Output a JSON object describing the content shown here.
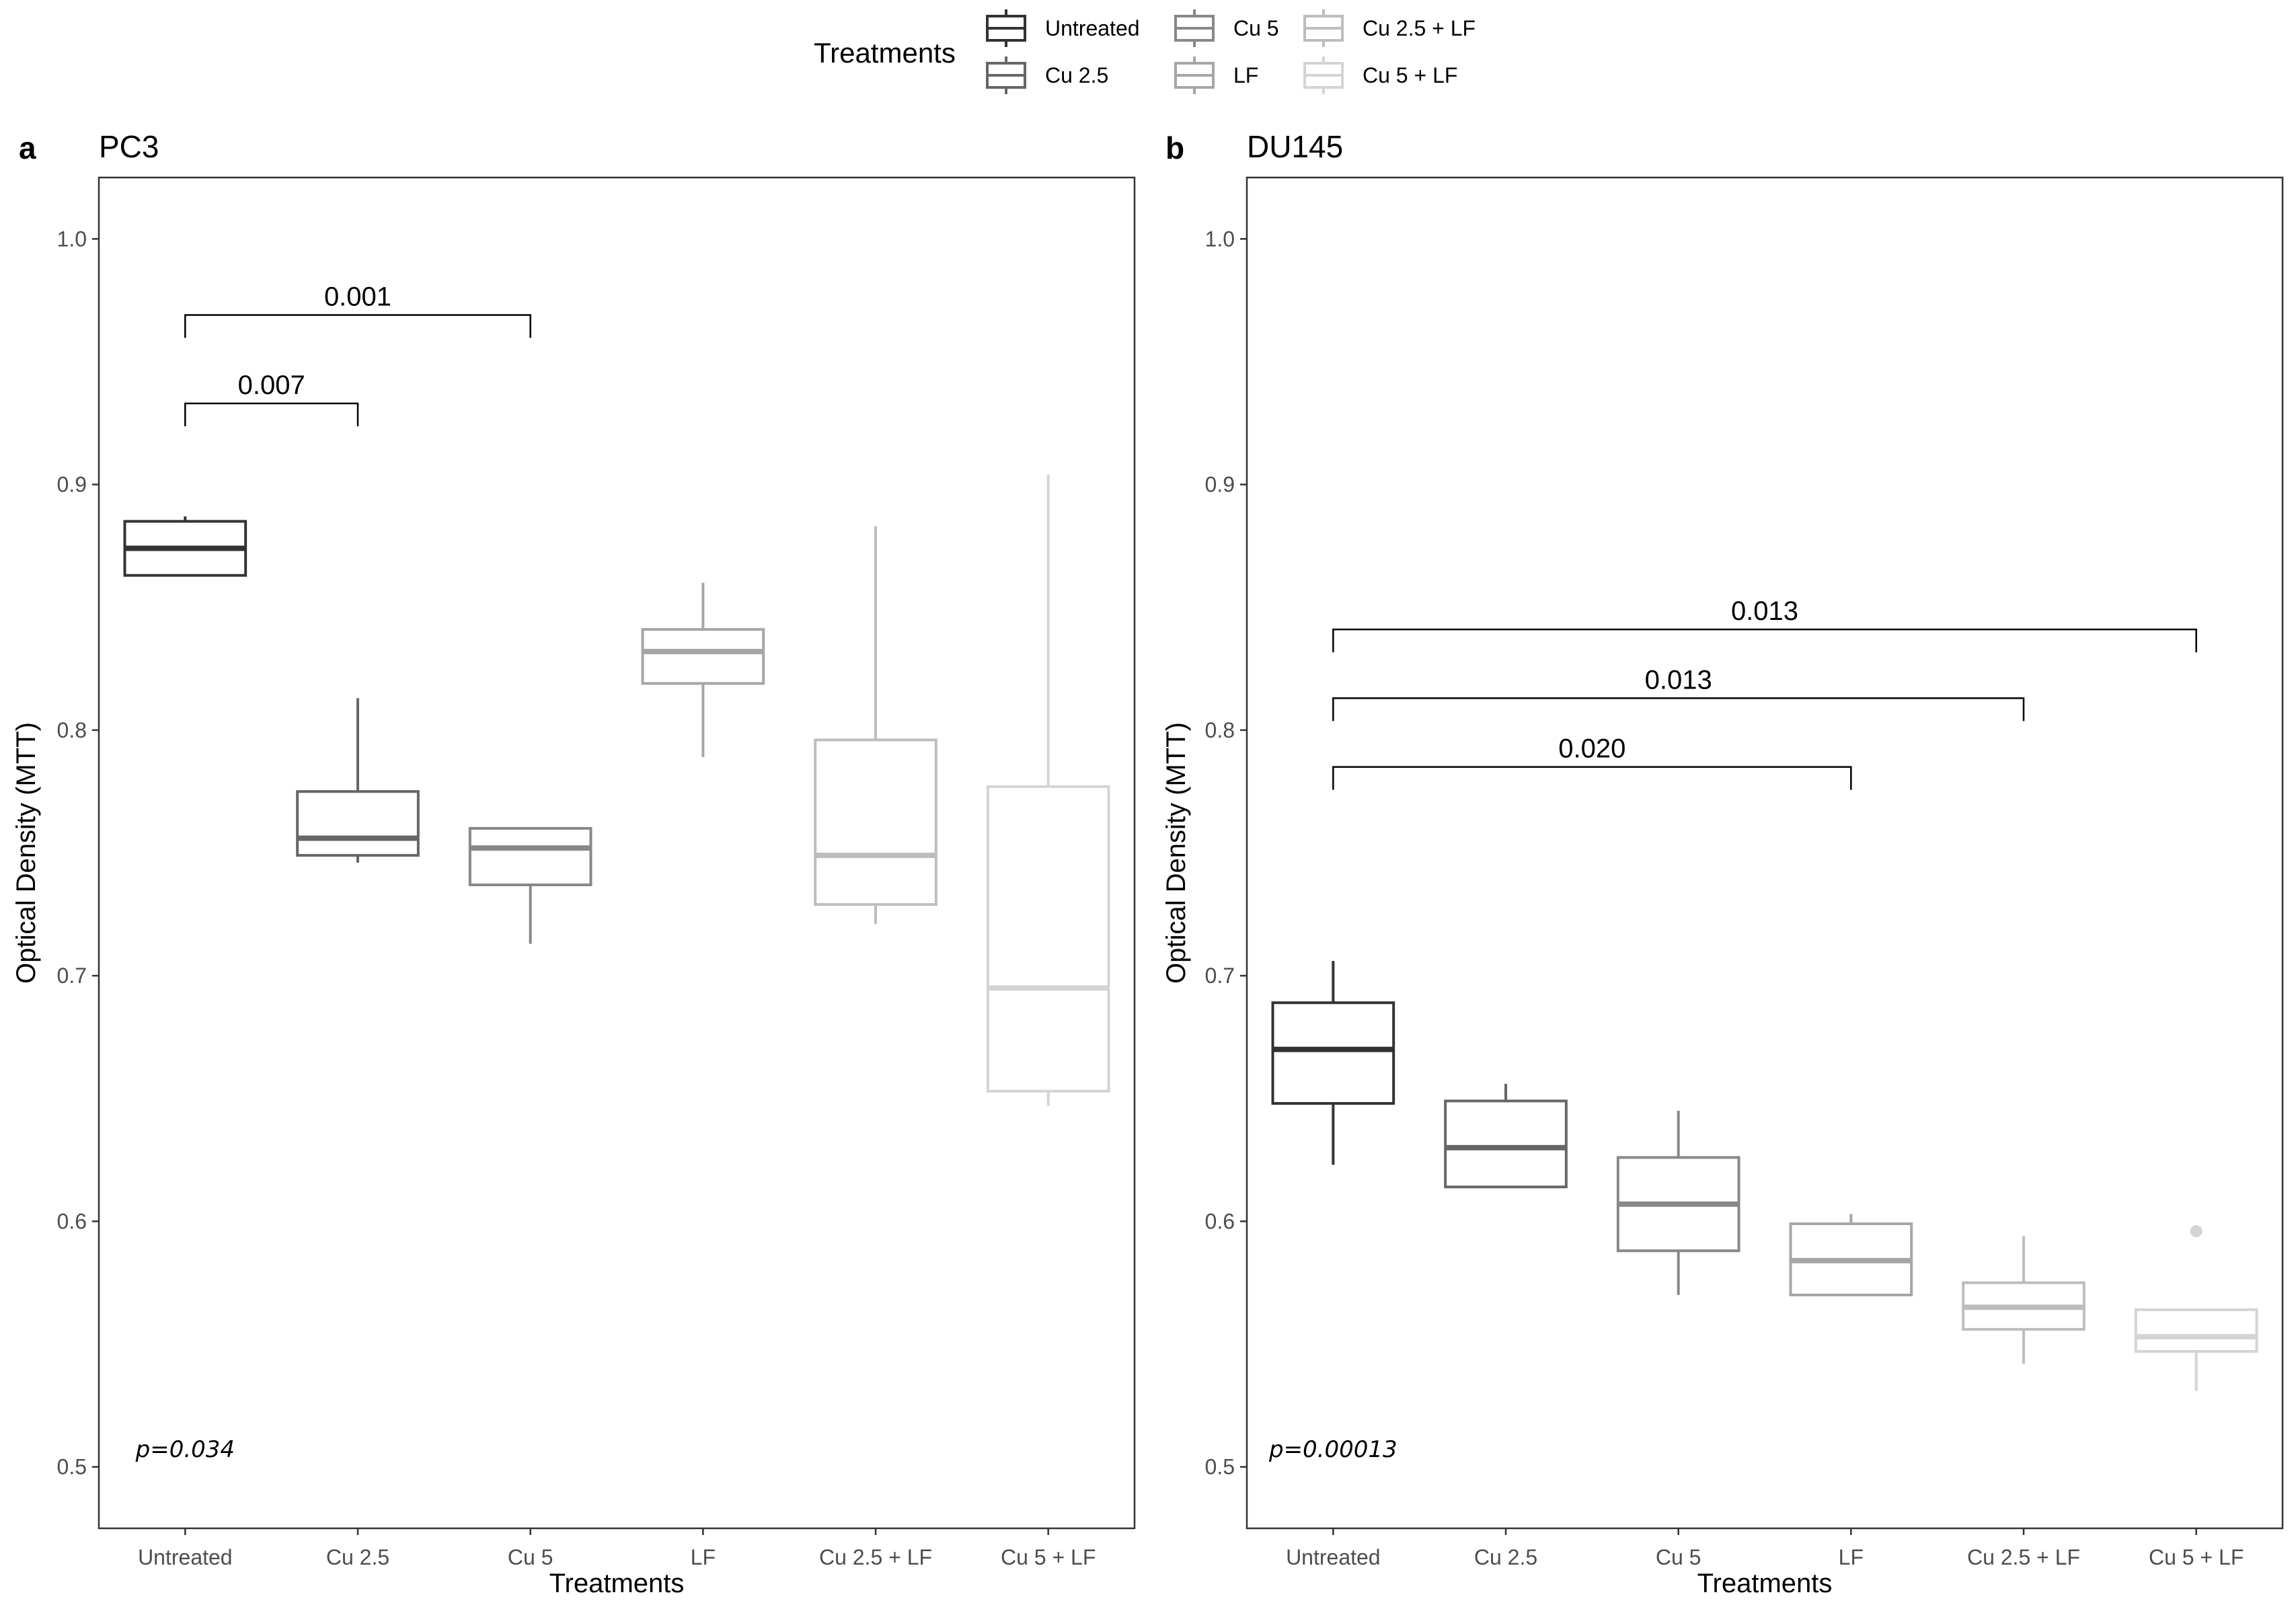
{
  "legend": {
    "title": "Treatments",
    "entries": [
      {
        "label": "Untreated",
        "color": "#333333"
      },
      {
        "label": "Cu 2.5",
        "color": "#666666"
      },
      {
        "label": "Cu 5",
        "color": "#888888"
      },
      {
        "label": "LF",
        "color": "#a6a6a6"
      },
      {
        "label": "Cu 2.5 + LF",
        "color": "#bdbdbd"
      },
      {
        "label": "Cu 5 + LF",
        "color": "#d4d4d4"
      }
    ]
  },
  "chart_data": [
    {
      "type": "boxplot",
      "panel_letter": "a",
      "title": "PC3",
      "xlabel": "Treatments",
      "ylabel": "Optical Density (MTT)",
      "ylim": [
        0.475,
        1.025
      ],
      "yticks": [
        "0.5",
        "0.6",
        "0.7",
        "0.8",
        "0.9",
        "1.0"
      ],
      "grid": false,
      "categories": [
        "Untreated",
        "Cu 2.5",
        "Cu 5",
        "LF",
        "Cu 2.5 + LF",
        "Cu 5 + LF"
      ],
      "boxes": [
        {
          "min": 0.863,
          "q1": 0.863,
          "median": 0.874,
          "q3": 0.885,
          "max": 0.887,
          "outliers": []
        },
        {
          "min": 0.746,
          "q1": 0.749,
          "median": 0.756,
          "q3": 0.775,
          "max": 0.813,
          "outliers": []
        },
        {
          "min": 0.713,
          "q1": 0.737,
          "median": 0.752,
          "q3": 0.76,
          "max": 0.76,
          "outliers": []
        },
        {
          "min": 0.789,
          "q1": 0.819,
          "median": 0.832,
          "q3": 0.841,
          "max": 0.86,
          "outliers": []
        },
        {
          "min": 0.721,
          "q1": 0.729,
          "median": 0.749,
          "q3": 0.796,
          "max": 0.883,
          "outliers": []
        },
        {
          "min": 0.647,
          "q1": 0.653,
          "median": 0.695,
          "q3": 0.777,
          "max": 0.904,
          "outliers": []
        }
      ],
      "brackets": [
        {
          "from": 0,
          "to": 1,
          "y": 0.933,
          "label": "0.007"
        },
        {
          "from": 0,
          "to": 2,
          "y": 0.969,
          "label": "0.001"
        }
      ],
      "pvalue_text": "p=0.034",
      "pvalue_pos": {
        "x_index": 0,
        "y": 0.504
      }
    },
    {
      "type": "boxplot",
      "panel_letter": "b",
      "title": "DU145",
      "xlabel": "Treatments",
      "ylabel": "Optical Density (MTT)",
      "ylim": [
        0.475,
        1.025
      ],
      "yticks": [
        "0.5",
        "0.6",
        "0.7",
        "0.8",
        "0.9",
        "1.0"
      ],
      "grid": false,
      "categories": [
        "Untreated",
        "Cu 2.5",
        "Cu 5",
        "LF",
        "Cu 2.5 + LF",
        "Cu 5 + LF"
      ],
      "boxes": [
        {
          "min": 0.623,
          "q1": 0.648,
          "median": 0.67,
          "q3": 0.689,
          "max": 0.706,
          "outliers": []
        },
        {
          "min": 0.614,
          "q1": 0.614,
          "median": 0.63,
          "q3": 0.649,
          "max": 0.656,
          "outliers": []
        },
        {
          "min": 0.57,
          "q1": 0.588,
          "median": 0.607,
          "q3": 0.626,
          "max": 0.645,
          "outliers": []
        },
        {
          "min": 0.57,
          "q1": 0.57,
          "median": 0.584,
          "q3": 0.599,
          "max": 0.603,
          "outliers": []
        },
        {
          "min": 0.542,
          "q1": 0.556,
          "median": 0.565,
          "q3": 0.575,
          "max": 0.594,
          "outliers": []
        },
        {
          "min": 0.531,
          "q1": 0.547,
          "median": 0.553,
          "q3": 0.564,
          "max": 0.564,
          "outliers": [
            0.596
          ]
        }
      ],
      "brackets": [
        {
          "from": 0,
          "to": 3,
          "y": 0.785,
          "label": "0.020"
        },
        {
          "from": 0,
          "to": 4,
          "y": 0.813,
          "label": "0.013"
        },
        {
          "from": 0,
          "to": 5,
          "y": 0.841,
          "label": "0.013"
        }
      ],
      "pvalue_text": "p=0.00013",
      "pvalue_pos": {
        "x_index": 0,
        "y": 0.504
      }
    }
  ]
}
